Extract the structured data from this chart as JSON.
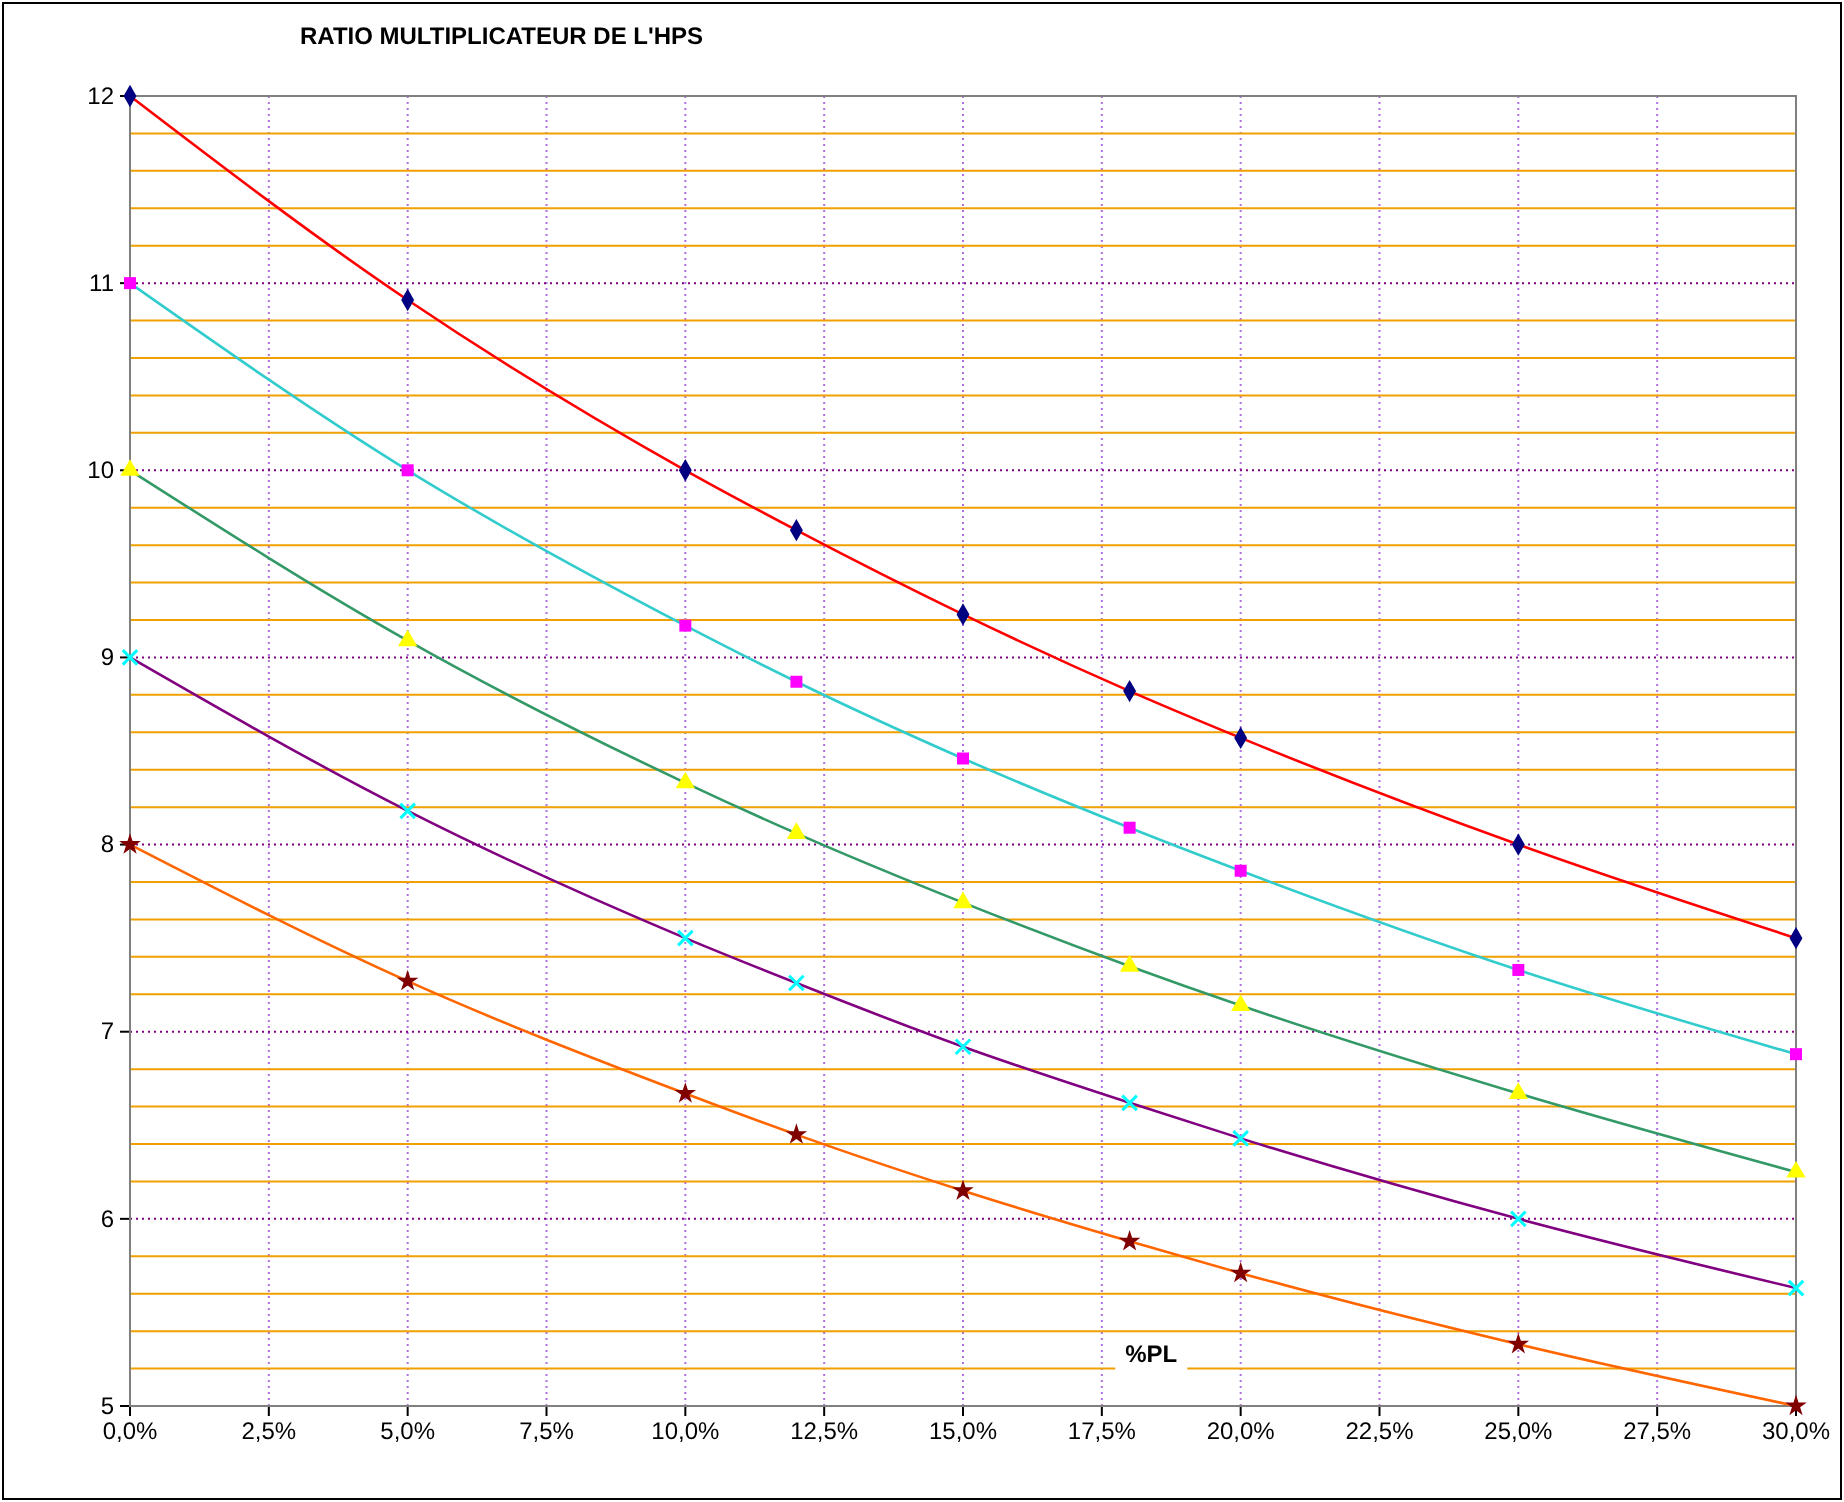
{
  "chart_data": {
    "type": "line",
    "title": "RATIO MULTIPLICATEUR DE L'HPS",
    "xlabel": "%PL",
    "x": [
      0,
      5,
      10,
      12,
      15,
      18,
      20,
      25,
      30
    ],
    "xlim": [
      0,
      30
    ],
    "xticks": [
      {
        "value": 0,
        "label": "0,0%"
      },
      {
        "value": 2.5,
        "label": "2,5%"
      },
      {
        "value": 5,
        "label": "5,0%"
      },
      {
        "value": 7.5,
        "label": "7,5%"
      },
      {
        "value": 10,
        "label": "10,0%"
      },
      {
        "value": 12.5,
        "label": "12,5%"
      },
      {
        "value": 15,
        "label": "15,0%"
      },
      {
        "value": 17.5,
        "label": "17,5%"
      },
      {
        "value": 20,
        "label": "20,0%"
      },
      {
        "value": 22.5,
        "label": "22,5%"
      },
      {
        "value": 25,
        "label": "25,0%"
      },
      {
        "value": 27.5,
        "label": "27,5%"
      },
      {
        "value": 30,
        "label": "30,0%"
      }
    ],
    "ylim": [
      5,
      12
    ],
    "yticks": [
      5,
      {
        "value": 5.2,
        "label": null
      },
      {
        "value": 5.4,
        "label": null
      },
      {
        "value": 5.6,
        "label": null
      },
      {
        "value": 5.8,
        "label": null
      },
      6,
      {
        "value": 6.2,
        "label": null
      },
      {
        "value": 6.4,
        "label": null
      },
      {
        "value": 6.6,
        "label": null
      },
      {
        "value": 6.8,
        "label": null
      },
      7,
      {
        "value": 7.2,
        "label": null
      },
      {
        "value": 7.4,
        "label": null
      },
      {
        "value": 7.6,
        "label": null
      },
      {
        "value": 7.8,
        "label": null
      },
      8,
      {
        "value": 8.2,
        "label": null
      },
      {
        "value": 8.4,
        "label": null
      },
      {
        "value": 8.6,
        "label": null
      },
      {
        "value": 8.8,
        "label": null
      },
      9,
      {
        "value": 9.2,
        "label": null
      },
      {
        "value": 9.4,
        "label": null
      },
      {
        "value": 9.6,
        "label": null
      },
      {
        "value": 9.8,
        "label": null
      },
      10,
      {
        "value": 10.2,
        "label": null
      },
      {
        "value": 10.4,
        "label": null
      },
      {
        "value": 10.6,
        "label": null
      },
      {
        "value": 10.8,
        "label": null
      },
      11,
      {
        "value": 11.2,
        "label": null
      },
      {
        "value": 11.4,
        "label": null
      },
      {
        "value": 11.6,
        "label": null
      },
      {
        "value": 11.8,
        "label": null
      },
      12
    ],
    "grid": true,
    "series": [
      {
        "color": "#ff0000",
        "values": [
          12,
          10.91,
          10,
          9.68,
          9.23,
          8.82,
          8.57,
          8,
          7.5
        ]
      },
      {
        "color": "#33cccc",
        "values": [
          11,
          10,
          9.17,
          8.87,
          8.46,
          8.09,
          7.86,
          7.33,
          6.88
        ]
      },
      {
        "color": "#339966",
        "values": [
          10,
          9.09,
          8.33,
          8.06,
          7.69,
          7.35,
          7.14,
          6.67,
          6.25
        ]
      },
      {
        "color": "#800080",
        "values": [
          9,
          8.18,
          7.5,
          7.26,
          6.92,
          6.62,
          6.43,
          6,
          5.63
        ]
      },
      {
        "color": "#ff6600",
        "values": [
          8,
          7.27,
          6.67,
          6.45,
          6.15,
          5.88,
          5.71,
          5.33,
          5
        ]
      },
      {
        "type": "scatter",
        "marker": "diamond",
        "color": "#000080",
        "values": [
          12,
          10.91,
          10,
          9.68,
          9.23,
          8.82,
          8.57,
          8,
          7.5
        ]
      },
      {
        "type": "scatter",
        "marker": "square",
        "color": "#ff00ff",
        "values": [
          11,
          10,
          9.17,
          8.87,
          8.46,
          8.09,
          7.86,
          7.33,
          6.88
        ]
      },
      {
        "type": "scatter",
        "marker": "triangle",
        "color": "#ffff00",
        "values": [
          10,
          9.09,
          8.33,
          8.06,
          7.69,
          7.35,
          7.14,
          6.67,
          6.25
        ]
      },
      {
        "type": "scatter",
        "marker": "cross",
        "color": "#00ffff",
        "values": [
          9,
          8.18,
          7.5,
          7.26,
          6.92,
          6.62,
          6.43,
          6,
          5.63
        ]
      },
      {
        "type": "scatter",
        "marker": "star",
        "color": "#800000",
        "values": [
          8,
          7.27,
          6.67,
          6.45,
          6.15,
          5.88,
          5.71,
          5.33,
          5
        ]
      }
    ]
  }
}
